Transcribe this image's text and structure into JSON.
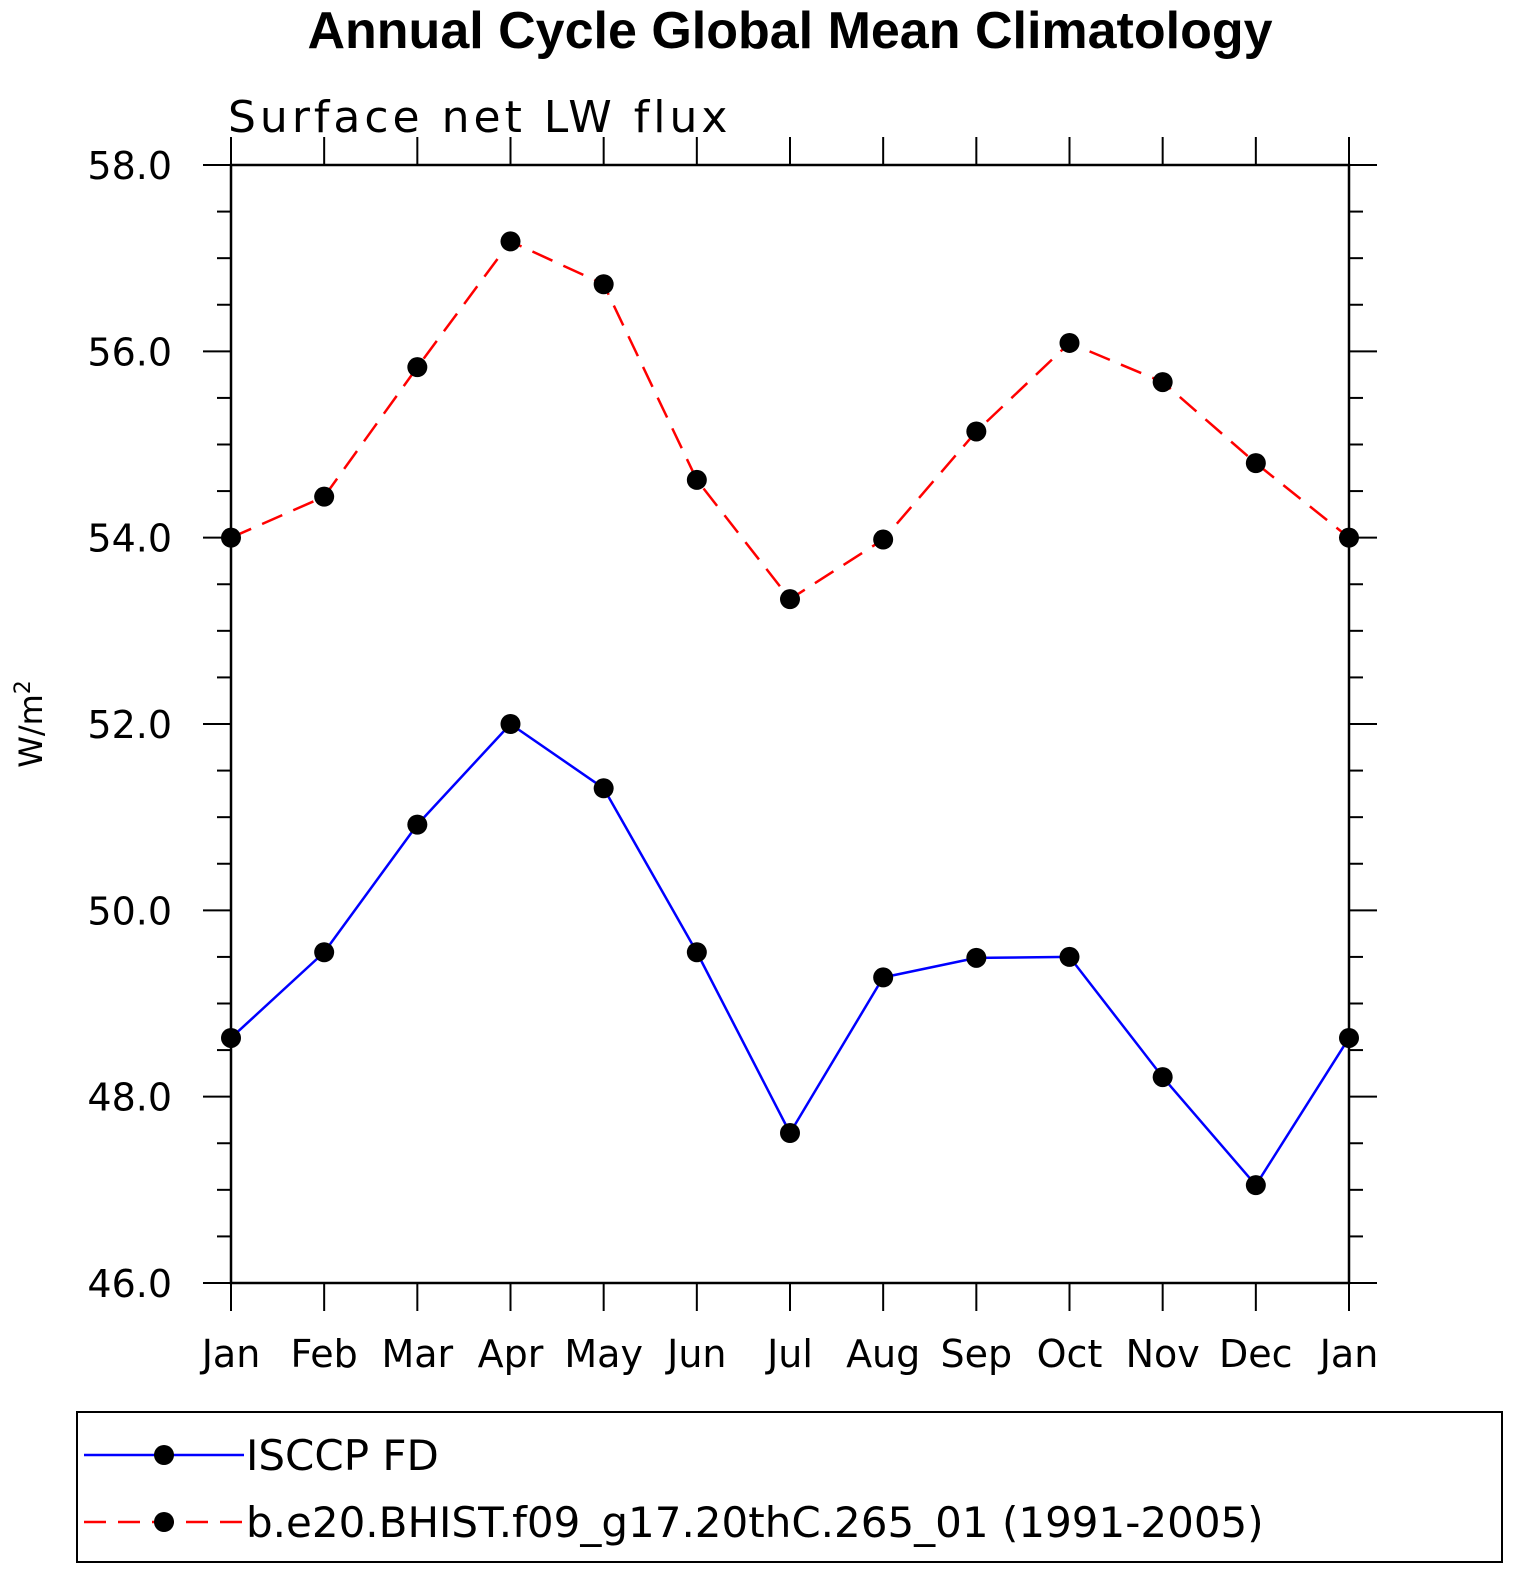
{
  "chart_data": {
    "type": "line",
    "title": "Annual Cycle Global Mean Climatology",
    "subtitle": "Surface net LW flux",
    "ylabel": "W/m",
    "ylabel_sup": "2",
    "ylim": [
      46.0,
      58.0
    ],
    "yticks": [
      "46.0",
      "48.0",
      "50.0",
      "52.0",
      "54.0",
      "56.0",
      "58.0"
    ],
    "categories": [
      "Jan",
      "Feb",
      "Mar",
      "Apr",
      "May",
      "Jun",
      "Jul",
      "Aug",
      "Sep",
      "Oct",
      "Nov",
      "Dec",
      "Jan"
    ],
    "grid": false,
    "legend_position": "bottom",
    "series": [
      {
        "name": "ISCCP FD",
        "color": "#0000ff",
        "dash": "solid",
        "values": [
          48.63,
          49.55,
          50.92,
          52.0,
          51.31,
          49.55,
          47.61,
          49.28,
          49.49,
          49.5,
          48.21,
          47.05,
          48.63
        ]
      },
      {
        "name": "b.e20.BHIST.f09_g17.20thC.265_01 (1991-2005)",
        "color": "#ff0000",
        "dash": "dashed",
        "values": [
          54.0,
          54.44,
          55.83,
          57.18,
          56.72,
          54.62,
          53.34,
          53.98,
          55.14,
          56.09,
          55.67,
          54.8,
          54.0
        ]
      }
    ]
  }
}
